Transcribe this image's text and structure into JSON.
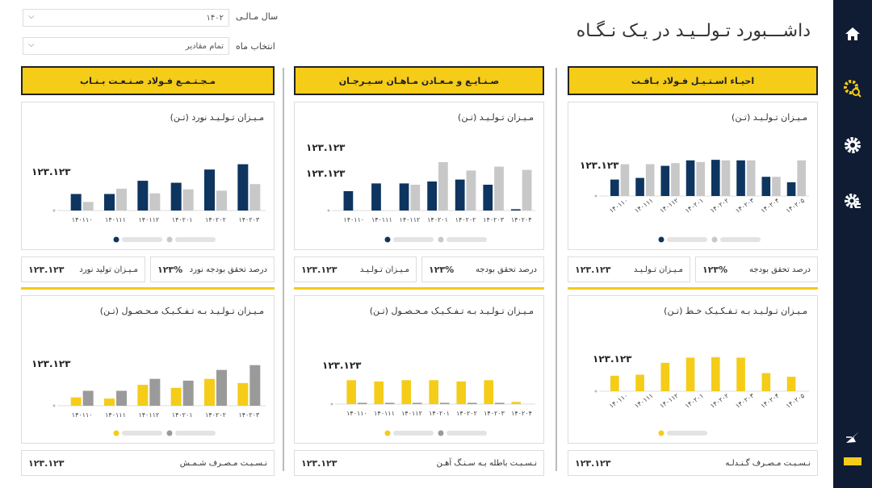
{
  "header": {
    "title": "داشـــبورد تـولــیـد در یـک نـگـاه"
  },
  "filters": {
    "year_label": "سال مـالـی",
    "year_value": "۱۴۰۲",
    "month_label": "انتخاب ماه",
    "month_value": "تمام مقادیر"
  },
  "sidebar": {
    "items": [
      "home-icon",
      "gear-search-icon",
      "gear-icon",
      "gear-sliders-icon",
      "send-icon",
      "menu-icon"
    ]
  },
  "colors": {
    "navy": "#0d3560",
    "gray": "#c8c8c8",
    "darkgray": "#9a9a9a",
    "yellow": "#f5cc18"
  },
  "columns": [
    {
      "header": "احیـاء اسـتـیـل فـولاد بـافـت",
      "top": {
        "title": "مـیـزان تـولـیـد (تـن)",
        "value_label": "۱۲۳.۱۲۳",
        "layout": "tall",
        "chart_data": {
          "type": "bar",
          "categories": [
            "۱۴۰۱۱۰",
            "۱۴۰۱۱۱",
            "۱۴۰۱۱۲",
            "۱۴۰۲۰۱",
            "۱۴۰۲۰۲",
            "۱۴۰۲۰۳",
            "۱۴۰۲۰۴",
            "۱۴۰۲۰۵"
          ],
          "series": [
            {
              "values": [
                30,
                33,
                55,
                65,
                66,
                65,
                35,
                25
              ]
            },
            {
              "values": [
                58,
                58,
                60,
                62,
                65,
                65,
                35,
                65
              ]
            }
          ]
        }
      },
      "kpis": [
        {
          "label": "درصد تحقق بودجه",
          "value": "۱۲۳%"
        },
        {
          "label": "مـیـزان تـولـیـد",
          "value": "۱۲۳.۱۲۳"
        }
      ],
      "bottom": {
        "title": "مـیـزان تـولـیـد بـه تـفـکـیـک خـط (تـن)",
        "value_label": "۱۲۳.۱۲۳",
        "chart_data": {
          "type": "bar",
          "categories": [
            "۱۴۰۱۱۰",
            "۱۴۰۱۱۱",
            "۱۴۰۱۱۲",
            "۱۴۰۲۰۱",
            "۱۴۰۲۰۲",
            "۱۴۰۲۰۳",
            "۱۴۰۲۰۴",
            "۱۴۰۲۰۵"
          ],
          "series": [
            {
              "values": [
                30,
                32,
                55,
                65,
                66,
                65,
                35,
                28
              ]
            }
          ]
        }
      },
      "footer": {
        "label": "نـسـبـت مـصـرف گـنـدلـه",
        "value": "۱۲۳.۱۲۳"
      }
    },
    {
      "header": "صـنـایـع و مـعـادن مـاهـان سـیـرجـان",
      "top": {
        "title": "مـیـزان تـولـیـد (تـن)",
        "value_label": "۱۲۳.۱۲۳",
        "layout": "split",
        "chart_data": {
          "type": "bar",
          "categories": [
            "۱۴۰۱۱۰",
            "۱۴۰۱۱۱",
            "۱۴۰۱۱۲",
            "۱۴۰۲۰۱",
            "۱۴۰۲۰۲",
            "۱۴۰۲۰۳",
            "۱۴۰۲۰۴"
          ],
          "series": [
            {
              "values": [
                30,
                42,
                42,
                45,
                48,
                40,
                2
              ]
            },
            {
              "values": [
                0,
                0,
                40,
                75,
                62,
                68,
                63
              ]
            }
          ]
        }
      },
      "kpis": [
        {
          "label": "درصد تحقق بودجه",
          "value": "۱۲۳%"
        },
        {
          "label": "مـیـزان تـولـیـد",
          "value": "۱۲۳.۱۲۳"
        }
      ],
      "bottom": {
        "title": "مـیـزان تـولـیـد بـه تـفـکـیـک مـحـصـول (تـن)",
        "value_label": "۱۲۳.۱۲۳",
        "chart_data": {
          "type": "bar",
          "categories": [
            "۱۴۰۱۱۰",
            "۱۴۰۱۱۱",
            "۱۴۰۱۱۲",
            "۱۴۰۲۰۱",
            "۱۴۰۲۰۲",
            "۱۴۰۲۰۳",
            "۱۴۰۲۰۴"
          ],
          "series": [
            {
              "values": [
                55,
                52,
                55,
                55,
                52,
                55,
                5
              ]
            },
            {
              "values": [
                3,
                3,
                3,
                3,
                3,
                3,
                0
              ]
            }
          ]
        }
      },
      "footer": {
        "label": "نـسـبـت باطله بـه سـنـگ آهـن",
        "value": "۱۲۳.۱۲۳"
      }
    },
    {
      "header": "مـجـتـمـع فـولاد صـنـعـت بـنـاب",
      "top": {
        "title": "مـیـزان تـولـیـد نورد (تـن)",
        "value_label": "۱۲۳.۱۲۳",
        "layout": "mid",
        "chart_data": {
          "type": "bar",
          "categories": [
            "۱۴۰۱۱۰",
            "۱۴۰۱۱۱",
            "۱۴۰۱۱۲",
            "۱۴۰۲۰۱",
            "۱۴۰۲۰۲",
            "۱۴۰۲۰۳"
          ],
          "series": [
            {
              "values": [
                25,
                25,
                45,
                42,
                62,
                70
              ]
            },
            {
              "values": [
                13,
                33,
                26,
                32,
                30,
                40
              ]
            }
          ]
        }
      },
      "kpis": [
        {
          "label": "درصد تحقق بودجه نورد",
          "value": "۱۲۳%"
        },
        {
          "label": "مـیـزان تولید نورد",
          "value": "۱۲۳.۱۲۳"
        }
      ],
      "bottom": {
        "title": "مـیـزان تـولـیـد بـه تـفـکـیـک مـحـصـول (تـن)",
        "value_label": "۱۲۳.۱۲۳",
        "chart_data": {
          "type": "bar",
          "categories": [
            "۱۴۰۱۱۰",
            "۱۴۰۱۱۱",
            "۱۴۰۱۱۲",
            "۱۴۰۲۰۱",
            "۱۴۰۲۰۲",
            "۱۴۰۲۰۳"
          ],
          "series": [
            {
              "values": [
                14,
                12,
                35,
                30,
                45,
                38
              ]
            },
            {
              "values": [
                25,
                25,
                45,
                42,
                60,
                68
              ]
            }
          ]
        }
      },
      "footer": {
        "label": "نـسـبـت مـصـرف شـمـش",
        "value": "۱۲۳.۱۲۳"
      }
    }
  ]
}
